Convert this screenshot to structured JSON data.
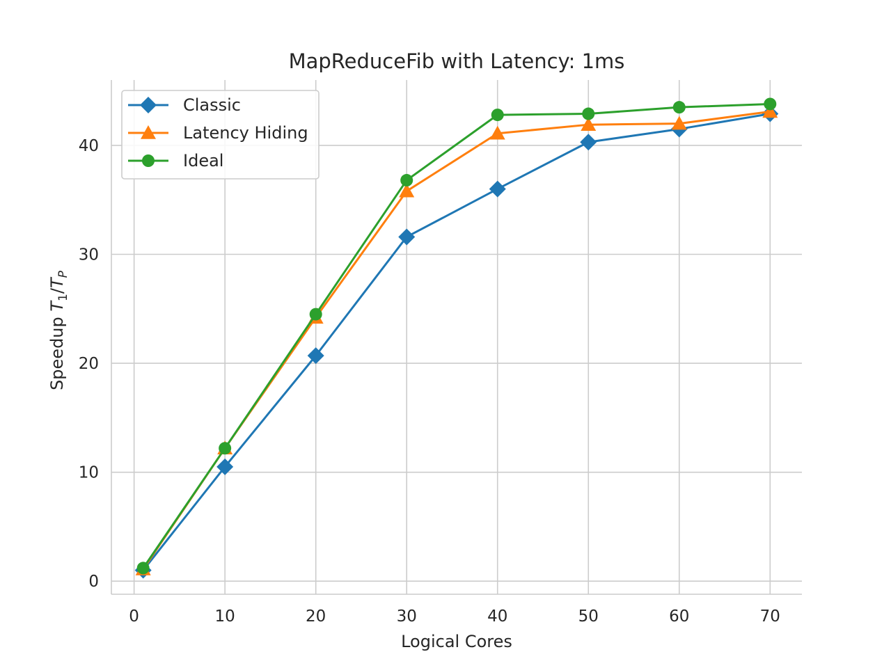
{
  "chart_data": {
    "type": "line",
    "title": "MapReduceFib with Latency: 1ms",
    "xlabel": "Logical Cores",
    "ylabel_prefix": "Speedup ",
    "ylabel_math": {
      "t1": "T",
      "s1": "1",
      "sep": "/",
      "t2": "T",
      "s2": "P"
    },
    "xlim": [
      -2.5,
      73.5
    ],
    "ylim": [
      -1.2,
      46
    ],
    "xticks": [
      0,
      10,
      20,
      30,
      40,
      50,
      60,
      70
    ],
    "yticks": [
      0,
      10,
      20,
      30,
      40
    ],
    "grid": true,
    "legend_position": "top-left",
    "x": [
      1,
      10,
      20,
      30,
      40,
      50,
      60,
      70
    ],
    "series": [
      {
        "name": "Classic",
        "color": "#1f77b4",
        "marker": "diamond",
        "values": [
          1.0,
          10.5,
          20.7,
          31.6,
          36.0,
          40.3,
          41.5,
          42.9
        ]
      },
      {
        "name": "Latency Hiding",
        "color": "#ff7f0e",
        "marker": "triangle",
        "values": [
          1.1,
          12.2,
          24.2,
          35.8,
          41.1,
          41.9,
          42.0,
          43.1
        ]
      },
      {
        "name": "Ideal",
        "color": "#2ca02c",
        "marker": "circle",
        "values": [
          1.2,
          12.2,
          24.5,
          36.8,
          42.8,
          42.9,
          43.5,
          43.8
        ]
      }
    ]
  }
}
